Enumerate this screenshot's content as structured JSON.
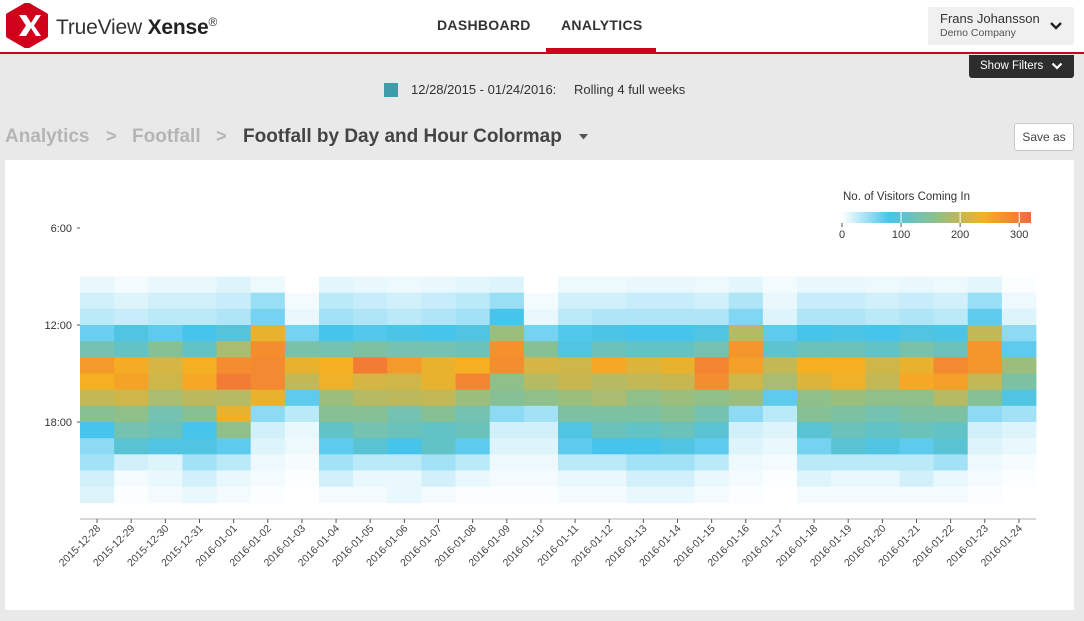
{
  "header": {
    "brand_light": "TrueView ",
    "brand_bold": "Xense",
    "brand_mark": "®",
    "logo_icon": "x-logo-icon",
    "brand_color": "#d0021b",
    "nav": [
      {
        "label": "DASHBOARD",
        "active": false
      },
      {
        "label": "ANALYTICS",
        "active": true
      }
    ],
    "user": {
      "name": "Frans Johansson",
      "company": "Demo Company",
      "icon": "chevron-down-icon"
    }
  },
  "filters": {
    "label": "Show Filters",
    "icon": "chevron-down-icon"
  },
  "period": {
    "color": "#3f9ca8",
    "range": "12/28/2015 - 01/24/2016:",
    "description": "Rolling 4 full weeks"
  },
  "breadcrumb": {
    "items": [
      "Analytics",
      "Footfall"
    ],
    "separator": ">",
    "current": "Footfall by Day and Hour Colormap",
    "current_icon": "caret-down-icon"
  },
  "actions": {
    "save_as": "Save as"
  },
  "chart_data": {
    "type": "heatmap",
    "title": "",
    "colorbar": {
      "title": "No. of Visitors Coming In",
      "ticks": [
        0,
        100,
        200,
        300
      ],
      "range": [
        0,
        320
      ],
      "colors": [
        "#ffffff",
        "#47c4ec",
        "#8fc08a",
        "#f5b022",
        "#f26a3a"
      ]
    },
    "y_ticks": [
      "6:00",
      "12:00",
      "18:00"
    ],
    "y_range": [
      6,
      24
    ],
    "row_start_hour": 9,
    "row_step_hours": 1,
    "x": [
      "2015-12-28",
      "2015-12-29",
      "2015-12-30",
      "2015-12-31",
      "2016-01-01",
      "2016-01-02",
      "2016-01-03",
      "2016-01-04",
      "2016-01-05",
      "2016-01-06",
      "2016-01-07",
      "2016-01-08",
      "2016-01-09",
      "2016-01-10",
      "2016-01-11",
      "2016-01-12",
      "2016-01-13",
      "2016-01-14",
      "2016-01-15",
      "2016-01-16",
      "2016-01-17",
      "2016-01-18",
      "2016-01-19",
      "2016-01-20",
      "2016-01-21",
      "2016-01-22",
      "2016-01-23",
      "2016-01-24"
    ],
    "values": [
      [
        10,
        5,
        10,
        10,
        15,
        8,
        0,
        12,
        10,
        8,
        10,
        12,
        15,
        0,
        8,
        8,
        10,
        10,
        8,
        12,
        5,
        10,
        10,
        8,
        10,
        8,
        12,
        2
      ],
      [
        20,
        15,
        20,
        20,
        25,
        45,
        5,
        30,
        25,
        20,
        25,
        30,
        45,
        5,
        20,
        20,
        25,
        25,
        20,
        35,
        10,
        25,
        25,
        20,
        25,
        20,
        45,
        8
      ],
      [
        30,
        25,
        30,
        30,
        35,
        60,
        10,
        40,
        35,
        30,
        35,
        40,
        80,
        10,
        30,
        35,
        35,
        35,
        35,
        55,
        15,
        35,
        35,
        30,
        35,
        30,
        70,
        15
      ],
      [
        65,
        90,
        70,
        80,
        95,
        230,
        60,
        80,
        75,
        85,
        80,
        90,
        170,
        60,
        75,
        85,
        80,
        80,
        90,
        190,
        70,
        80,
        85,
        80,
        90,
        85,
        200,
        50
      ],
      [
        130,
        110,
        150,
        110,
        180,
        280,
        135,
        130,
        140,
        130,
        130,
        120,
        275,
        150,
        90,
        120,
        110,
        110,
        130,
        270,
        105,
        120,
        120,
        110,
        135,
        120,
        270,
        70
      ],
      [
        265,
        245,
        215,
        240,
        280,
        285,
        230,
        240,
        300,
        265,
        230,
        240,
        280,
        215,
        210,
        250,
        220,
        230,
        290,
        260,
        200,
        240,
        240,
        210,
        230,
        285,
        270,
        170
      ],
      [
        240,
        255,
        210,
        250,
        300,
        285,
        200,
        235,
        215,
        210,
        230,
        290,
        160,
        190,
        205,
        190,
        200,
        205,
        280,
        210,
        180,
        220,
        235,
        200,
        250,
        260,
        200,
        140
      ],
      [
        200,
        210,
        180,
        195,
        190,
        230,
        70,
        170,
        190,
        195,
        200,
        170,
        150,
        160,
        170,
        180,
        160,
        170,
        160,
        170,
        70,
        160,
        170,
        160,
        160,
        190,
        150,
        90
      ],
      [
        150,
        160,
        130,
        150,
        230,
        50,
        30,
        150,
        150,
        130,
        150,
        130,
        50,
        40,
        140,
        140,
        140,
        150,
        130,
        50,
        30,
        150,
        140,
        130,
        140,
        140,
        50,
        40
      ],
      [
        80,
        130,
        120,
        80,
        160,
        20,
        10,
        110,
        130,
        120,
        110,
        120,
        20,
        20,
        90,
        120,
        110,
        120,
        100,
        20,
        15,
        100,
        120,
        110,
        120,
        110,
        20,
        15
      ],
      [
        50,
        100,
        90,
        90,
        70,
        15,
        8,
        70,
        100,
        80,
        110,
        70,
        15,
        15,
        70,
        80,
        80,
        90,
        70,
        15,
        10,
        60,
        100,
        90,
        70,
        100,
        15,
        10
      ],
      [
        40,
        20,
        15,
        40,
        30,
        8,
        4,
        40,
        30,
        30,
        40,
        30,
        8,
        8,
        30,
        30,
        40,
        40,
        30,
        8,
        5,
        30,
        30,
        30,
        30,
        40,
        8,
        4
      ],
      [
        20,
        5,
        10,
        20,
        10,
        5,
        2,
        20,
        10,
        10,
        20,
        10,
        5,
        5,
        10,
        10,
        20,
        20,
        10,
        5,
        2,
        15,
        10,
        10,
        20,
        10,
        5,
        2
      ],
      [
        15,
        2,
        5,
        10,
        5,
        2,
        0,
        5,
        5,
        10,
        5,
        2,
        2,
        2,
        5,
        5,
        10,
        10,
        5,
        2,
        0,
        5,
        5,
        5,
        5,
        5,
        2,
        0
      ]
    ]
  }
}
